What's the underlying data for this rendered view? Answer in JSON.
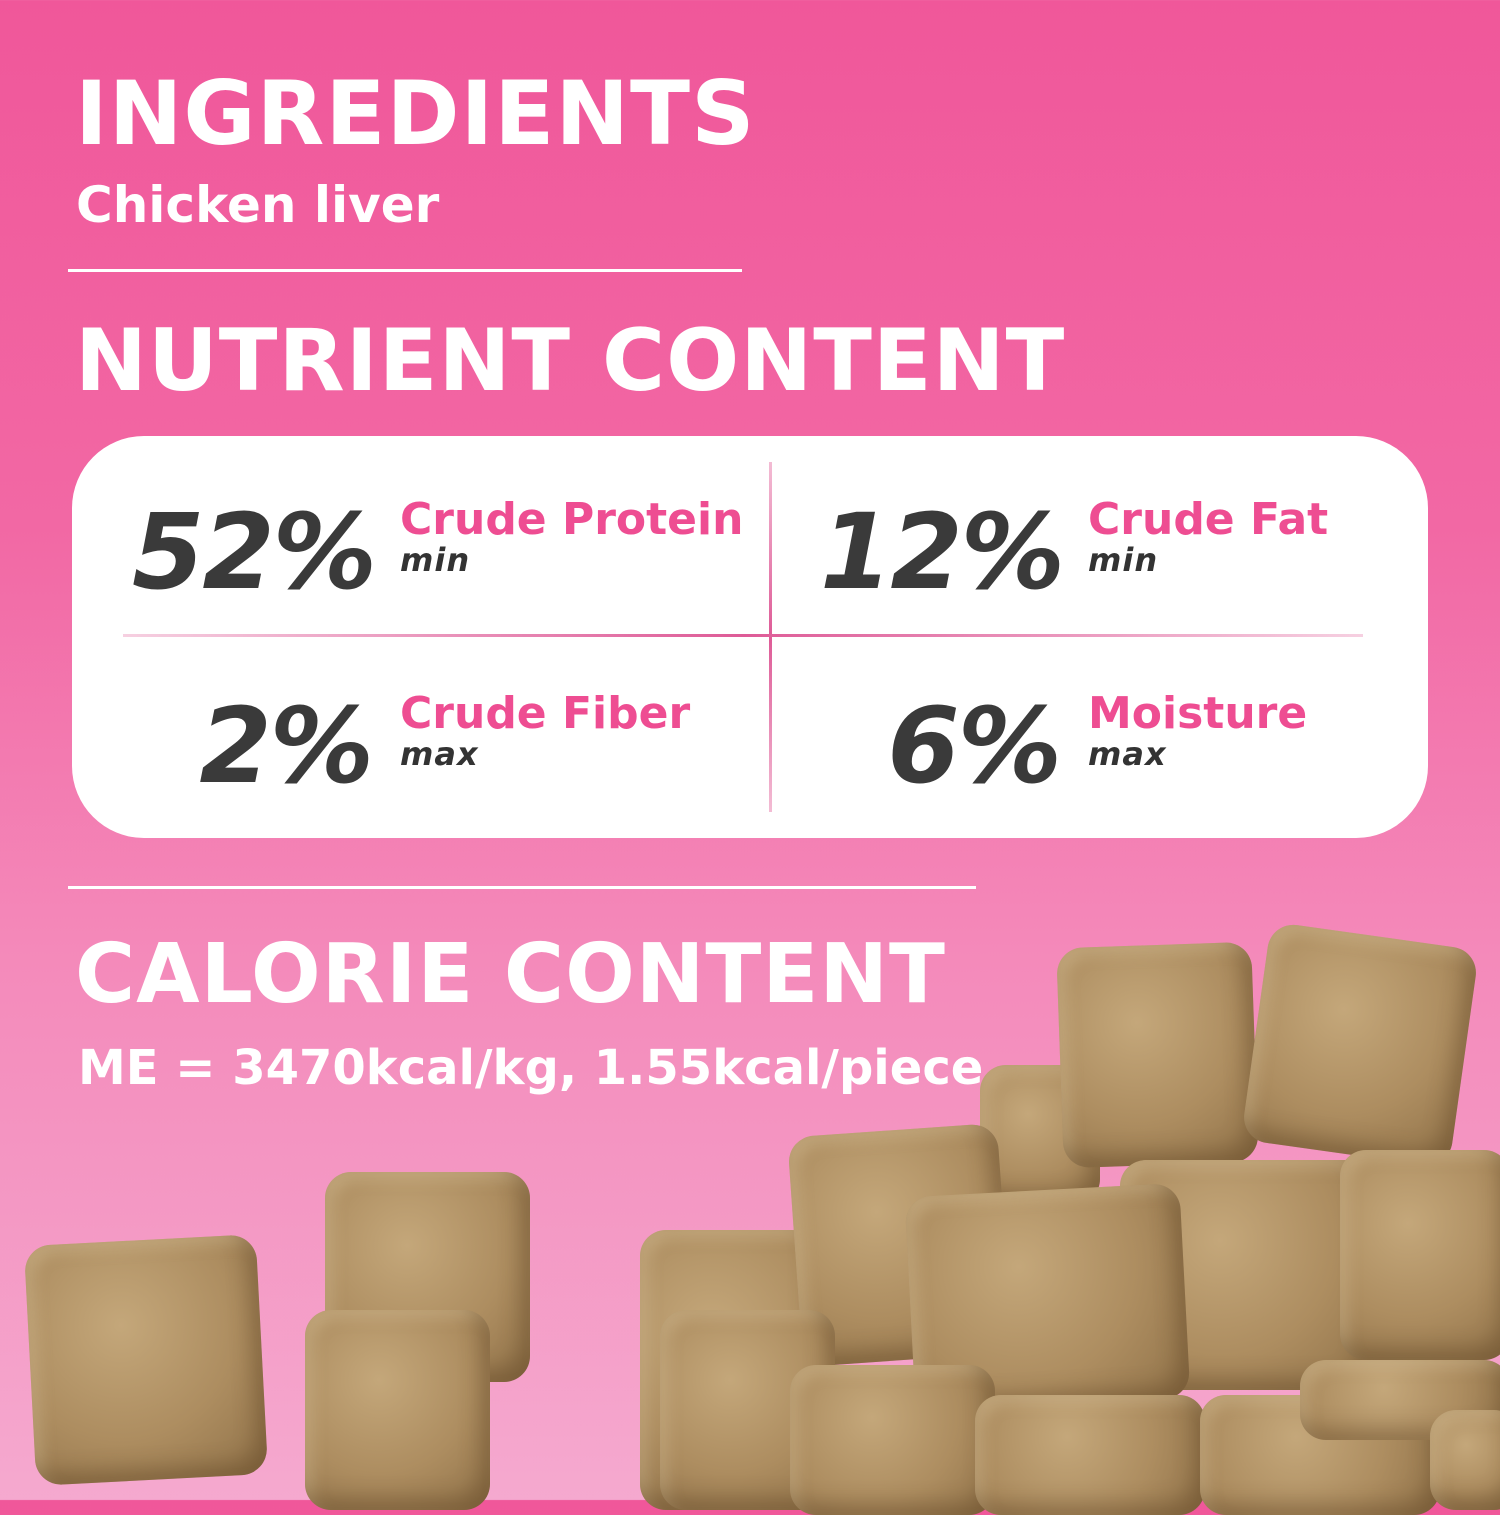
{
  "ingredients": {
    "heading": "INGREDIENTS",
    "text": "Chicken liver"
  },
  "nutrient": {
    "heading": "NUTRIENT CONTENT",
    "items": [
      {
        "value": "52%",
        "name": "Crude Protein",
        "qualifier": "min"
      },
      {
        "value": "12%",
        "name": "Crude Fat",
        "qualifier": "min"
      },
      {
        "value": "2%",
        "name": "Crude Fiber",
        "qualifier": "max"
      },
      {
        "value": "6%",
        "name": "Moisture",
        "qualifier": "max"
      }
    ]
  },
  "calorie": {
    "heading": "CALORIE CONTENT",
    "text": "ME = 3470kcal/kg, 1.55kcal/piece"
  },
  "colors": {
    "background": "#f0579a",
    "accent": "#ee4d92",
    "value_text": "#3a3a3a",
    "card": "#ffffff"
  }
}
